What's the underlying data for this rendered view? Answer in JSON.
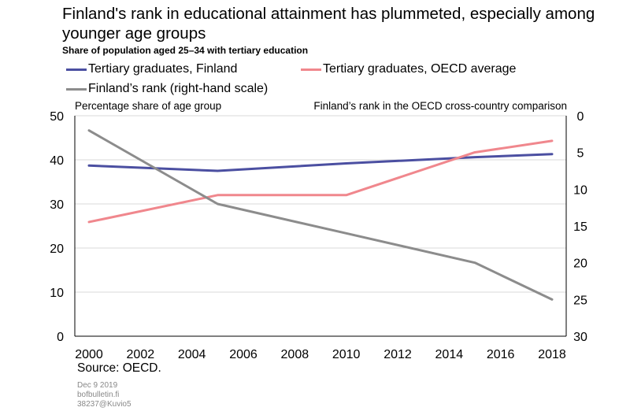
{
  "title": "Finland's rank in educational attainment has plummeted, especially among younger age groups",
  "subtitle": "Share of population aged 25–34 with tertiary education",
  "legend": [
    {
      "name": "Tertiary graduates, Finland",
      "color": "#4b4fa1"
    },
    {
      "name": "Tertiary graduates, OECD average",
      "color": "#f0878d"
    },
    {
      "name": "Finland’s rank (right-hand scale)",
      "color": "#8c8c8c"
    }
  ],
  "left_axis_label": "Percentage share of age group",
  "right_axis_label": "Finland’s rank in the OECD cross-country comparison",
  "source": "Source: OECD.",
  "footer": {
    "date": "Dec 9 2019",
    "site": "bofbulletin.fi",
    "id": "38237@Kuvio5"
  },
  "chart_data": {
    "type": "line",
    "x_ticks": [
      2000,
      2002,
      2004,
      2006,
      2008,
      2010,
      2012,
      2014,
      2016,
      2018
    ],
    "xlim": [
      2000,
      2018
    ],
    "ylim_left": [
      0,
      50
    ],
    "y_ticks_left": [
      0,
      10,
      20,
      30,
      40,
      50
    ],
    "ylim_right": [
      0,
      30
    ],
    "right_axis_inverted": true,
    "y_ticks_right": [
      0,
      5,
      10,
      15,
      20,
      25,
      30
    ],
    "grid": true,
    "series": [
      {
        "name": "Tertiary graduates, Finland",
        "axis": "left",
        "color": "#4b4fa1",
        "x": [
          2000,
          2005,
          2010,
          2015,
          2018
        ],
        "y": [
          38.7,
          37.5,
          39.2,
          40.6,
          41.3
        ]
      },
      {
        "name": "Tertiary graduates, OECD average",
        "axis": "left",
        "color": "#f0878d",
        "x": [
          2000,
          2005,
          2010,
          2015,
          2018
        ],
        "y": [
          25.9,
          32.0,
          32.0,
          41.7,
          44.3
        ]
      },
      {
        "name": "Finland’s rank (right-hand scale)",
        "axis": "right",
        "color": "#8c8c8c",
        "x": [
          2000,
          2005,
          2010,
          2015,
          2018
        ],
        "y": [
          2,
          12,
          16,
          20,
          25
        ]
      }
    ]
  }
}
